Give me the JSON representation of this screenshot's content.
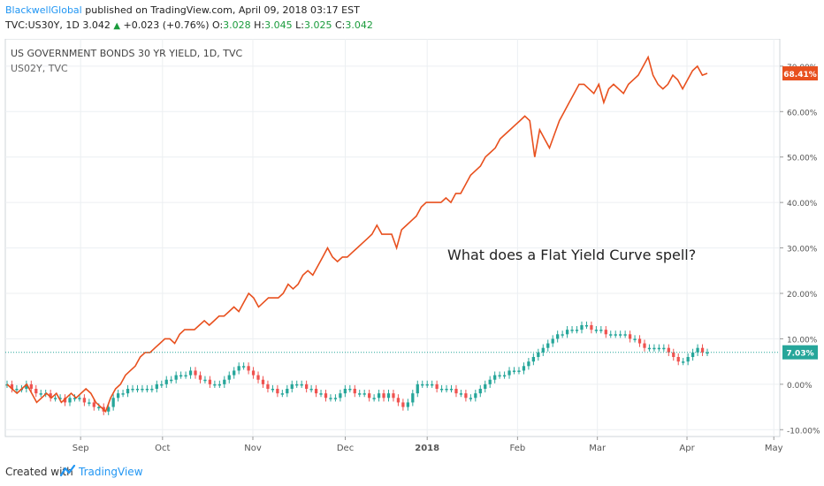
{
  "header": {
    "author": "BlackwellGlobal",
    "published_text": "published on TradingView.com, April 09, 2018 03:17 EST",
    "symbol": "TVC:US30Y, 1D",
    "last": "3.042",
    "change": "+0.023 (+0.76%)",
    "o_label": "O:",
    "o_value": "3.028",
    "h_label": "H:",
    "h_value": "3.045",
    "l_label": "L:",
    "l_value": "3.025",
    "c_label": "C:",
    "c_value": "3.042"
  },
  "chart_data": {
    "type": "line",
    "title": "US GOVERNMENT BONDS 30 YR YIELD, 1D, TVC",
    "subtitle": "US02Y, TVC",
    "annotation": "What does a Flat Yield Curve spell?",
    "x_tick_labels": [
      "Sep",
      "Oct",
      "Nov",
      "Dec",
      "2018",
      "Feb",
      "Mar",
      "Apr",
      "May"
    ],
    "y_tick_labels": [
      "70.00%",
      "60.00%",
      "50.00%",
      "40.00%",
      "30.00%",
      "20.00%",
      "10.00%",
      "0.00%",
      "-10.00%"
    ],
    "y_ticks": [
      70,
      60,
      50,
      40,
      30,
      20,
      10,
      0,
      -10
    ],
    "ylim": [
      -11.5,
      76
    ],
    "grid": true,
    "series": [
      {
        "name": "US02Y",
        "kind": "line",
        "color": "#e8501e",
        "last_label": "68.41%",
        "values": [
          0,
          -1,
          -2,
          -1,
          0,
          -2,
          -4,
          -3,
          -2,
          -3,
          -2,
          -4,
          -3,
          -2,
          -3,
          -2,
          -1,
          -2,
          -4,
          -5,
          -6,
          -3,
          -1,
          0,
          2,
          3,
          4,
          6,
          7,
          7,
          8,
          9,
          10,
          10,
          9,
          11,
          12,
          12,
          12,
          13,
          14,
          13,
          14,
          15,
          15,
          16,
          17,
          16,
          18,
          20,
          19,
          17,
          18,
          19,
          19,
          19,
          20,
          22,
          21,
          22,
          24,
          25,
          24,
          26,
          28,
          30,
          28,
          27,
          28,
          28,
          29,
          30,
          31,
          32,
          33,
          35,
          33,
          33,
          33,
          30,
          34,
          35,
          36,
          37,
          39,
          40,
          40,
          40,
          40,
          41,
          40,
          42,
          42,
          44,
          46,
          47,
          48,
          50,
          51,
          52,
          54,
          55,
          56,
          57,
          58,
          59,
          58,
          50,
          56,
          54,
          52,
          55,
          58,
          60,
          62,
          64,
          66,
          66,
          65,
          64,
          66,
          62,
          65,
          66,
          65,
          64,
          66,
          67,
          68,
          70,
          72,
          68,
          66,
          65,
          66,
          68,
          67,
          65,
          67,
          69,
          70,
          68,
          68.41
        ]
      },
      {
        "name": "US30Y",
        "kind": "candlestick",
        "up_color": "#26a69a",
        "down_color": "#ef5350",
        "last_label": "7.03%",
        "values": [
          0,
          -1,
          -1,
          -1,
          0,
          -1,
          -2,
          -2,
          -2,
          -3,
          -3,
          -3,
          -4,
          -3,
          -3,
          -3,
          -4,
          -4,
          -5,
          -5,
          -6,
          -5,
          -3,
          -2,
          -2,
          -1,
          -1,
          -1,
          -1,
          -1,
          -1,
          0,
          0,
          1,
          1,
          2,
          2,
          2,
          3,
          2,
          1,
          1,
          0,
          0,
          0,
          1,
          2,
          3,
          4,
          4,
          3,
          2,
          1,
          0,
          -1,
          -1,
          -2,
          -2,
          -1,
          0,
          0,
          0,
          -1,
          -1,
          -2,
          -2,
          -3,
          -3,
          -3,
          -2,
          -1,
          -1,
          -2,
          -2,
          -2,
          -3,
          -3,
          -2,
          -3,
          -2,
          -3,
          -4,
          -5,
          -4,
          -2,
          0,
          0,
          0,
          0,
          -1,
          -1,
          -1,
          -1,
          -2,
          -2,
          -3,
          -3,
          -2,
          -1,
          0,
          1,
          2,
          2,
          2,
          3,
          3,
          3,
          4,
          5,
          6,
          7,
          8,
          9,
          10,
          11,
          11,
          12,
          12,
          12,
          13,
          13,
          12,
          12,
          12,
          11,
          11,
          11,
          11,
          11,
          10,
          10,
          9,
          8,
          8,
          8,
          8,
          8,
          7,
          6,
          5,
          5,
          6,
          7,
          8,
          7,
          7.03
        ]
      }
    ]
  },
  "footer": {
    "created_with": "Created with",
    "brand": "TradingView"
  }
}
